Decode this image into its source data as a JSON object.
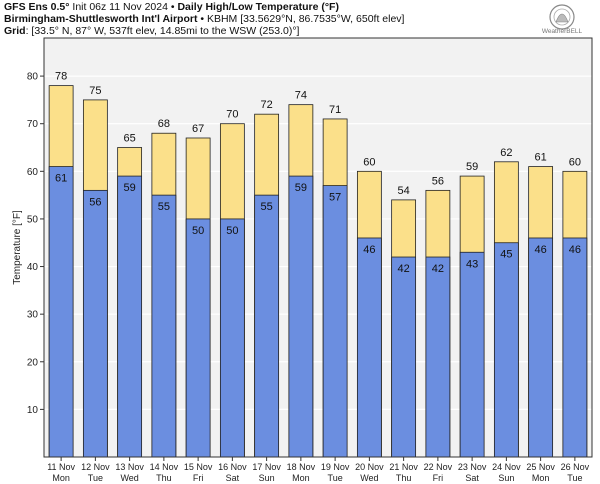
{
  "header": {
    "line1_bold": "GFS Ens 0.5°",
    "line1_rest": " Init 06z 11 Nov 2024 • ",
    "line1_title": "Daily High/Low Temperature (°F)",
    "line2_bold": "Birmingham-Shuttlesworth Int'l Airport",
    "line2_rest": " • KBHM [33.5629°N, 86.7535°W, 650ft elev]",
    "line3_bold": "Grid",
    "line3_rest": ": [33.5° N, 87° W, 537ft elev, 14.85mi to the WSW (253.0)°]"
  },
  "logo": {
    "text": "WeatherBELL"
  },
  "colors": {
    "high": "#fbe08a",
    "low": "#6b8ee0",
    "plot_bg": "#f2f2f2",
    "grid": "#ffffff",
    "bar_edge": "#222222"
  },
  "chart_data": {
    "type": "bar",
    "ylabel": "Temperature [°F]",
    "ylim": [
      0,
      88
    ],
    "yticks": [
      10,
      20,
      30,
      40,
      50,
      60,
      70,
      80
    ],
    "grid": true,
    "categories": [
      {
        "date": "11 Nov",
        "day": "Mon"
      },
      {
        "date": "12 Nov",
        "day": "Tue"
      },
      {
        "date": "13 Nov",
        "day": "Wed"
      },
      {
        "date": "14 Nov",
        "day": "Thu"
      },
      {
        "date": "15 Nov",
        "day": "Fri"
      },
      {
        "date": "16 Nov",
        "day": "Sat"
      },
      {
        "date": "17 Nov",
        "day": "Sun"
      },
      {
        "date": "18 Nov",
        "day": "Mon"
      },
      {
        "date": "19 Nov",
        "day": "Tue"
      },
      {
        "date": "20 Nov",
        "day": "Wed"
      },
      {
        "date": "21 Nov",
        "day": "Thu"
      },
      {
        "date": "22 Nov",
        "day": "Fri"
      },
      {
        "date": "23 Nov",
        "day": "Sat"
      },
      {
        "date": "24 Nov",
        "day": "Sun"
      },
      {
        "date": "25 Nov",
        "day": "Mon"
      },
      {
        "date": "26 Nov",
        "day": "Tue"
      }
    ],
    "series": [
      {
        "values": [
          78,
          75,
          65,
          68,
          67,
          70,
          72,
          74,
          71,
          60,
          54,
          56,
          59,
          62,
          61,
          60
        ]
      },
      {
        "values": [
          61,
          56,
          59,
          55,
          50,
          50,
          55,
          59,
          57,
          46,
          42,
          42,
          43,
          45,
          46,
          46
        ]
      }
    ]
  }
}
